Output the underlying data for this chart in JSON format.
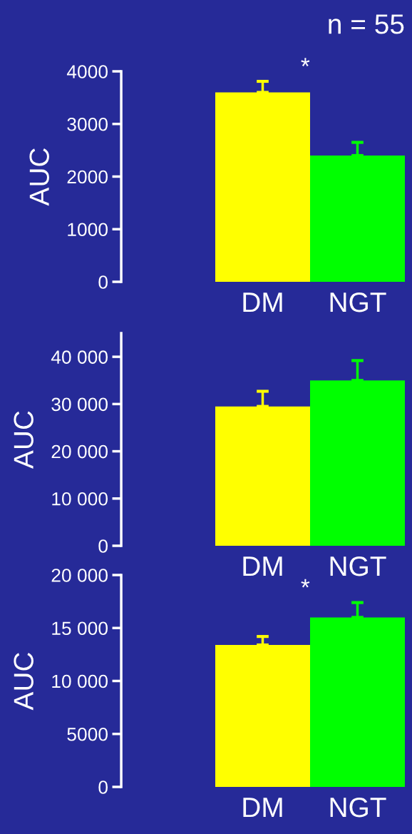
{
  "chart_data": [
    {
      "type": "bar",
      "title": "n = 55",
      "ylabel": "AUC",
      "categories": [
        "DM",
        "NGT"
      ],
      "values": [
        3600,
        2400
      ],
      "errors": [
        210,
        250
      ],
      "colors": [
        "#ffff00",
        "#00ff00"
      ],
      "ylim": [
        0,
        4000
      ],
      "yticks": [
        0,
        1000,
        2000,
        3000,
        4000
      ],
      "annotations": [
        "*"
      ],
      "grid": false,
      "legend": false
    },
    {
      "type": "bar",
      "ylabel": "AUC",
      "categories": [
        "DM",
        "NGT"
      ],
      "values": [
        29500,
        35000
      ],
      "errors": [
        3200,
        4200
      ],
      "colors": [
        "#ffff00",
        "#00ff00"
      ],
      "ylim": [
        0,
        45000
      ],
      "yticks": [
        {
          "value": 0,
          "label": "0"
        },
        {
          "value": 10000,
          "label": "10 000"
        },
        {
          "value": 20000,
          "label": "20 000"
        },
        {
          "value": 30000,
          "label": "30 000"
        },
        {
          "value": 40000,
          "label": "40 000"
        }
      ],
      "grid": false,
      "legend": false
    },
    {
      "type": "bar",
      "ylabel": "AUC",
      "categories": [
        "DM",
        "NGT"
      ],
      "values": [
        13400,
        16000
      ],
      "errors": [
        800,
        1400
      ],
      "colors": [
        "#ffff00",
        "#00ff00"
      ],
      "ylim": [
        0,
        20000
      ],
      "yticks": [
        0,
        5000,
        {
          "value": 10000,
          "label": "10 000"
        },
        {
          "value": 15000,
          "label": "15 000"
        },
        {
          "value": 20000,
          "label": "20 000"
        }
      ],
      "annotations": [
        "*"
      ],
      "grid": false,
      "legend": false
    }
  ]
}
